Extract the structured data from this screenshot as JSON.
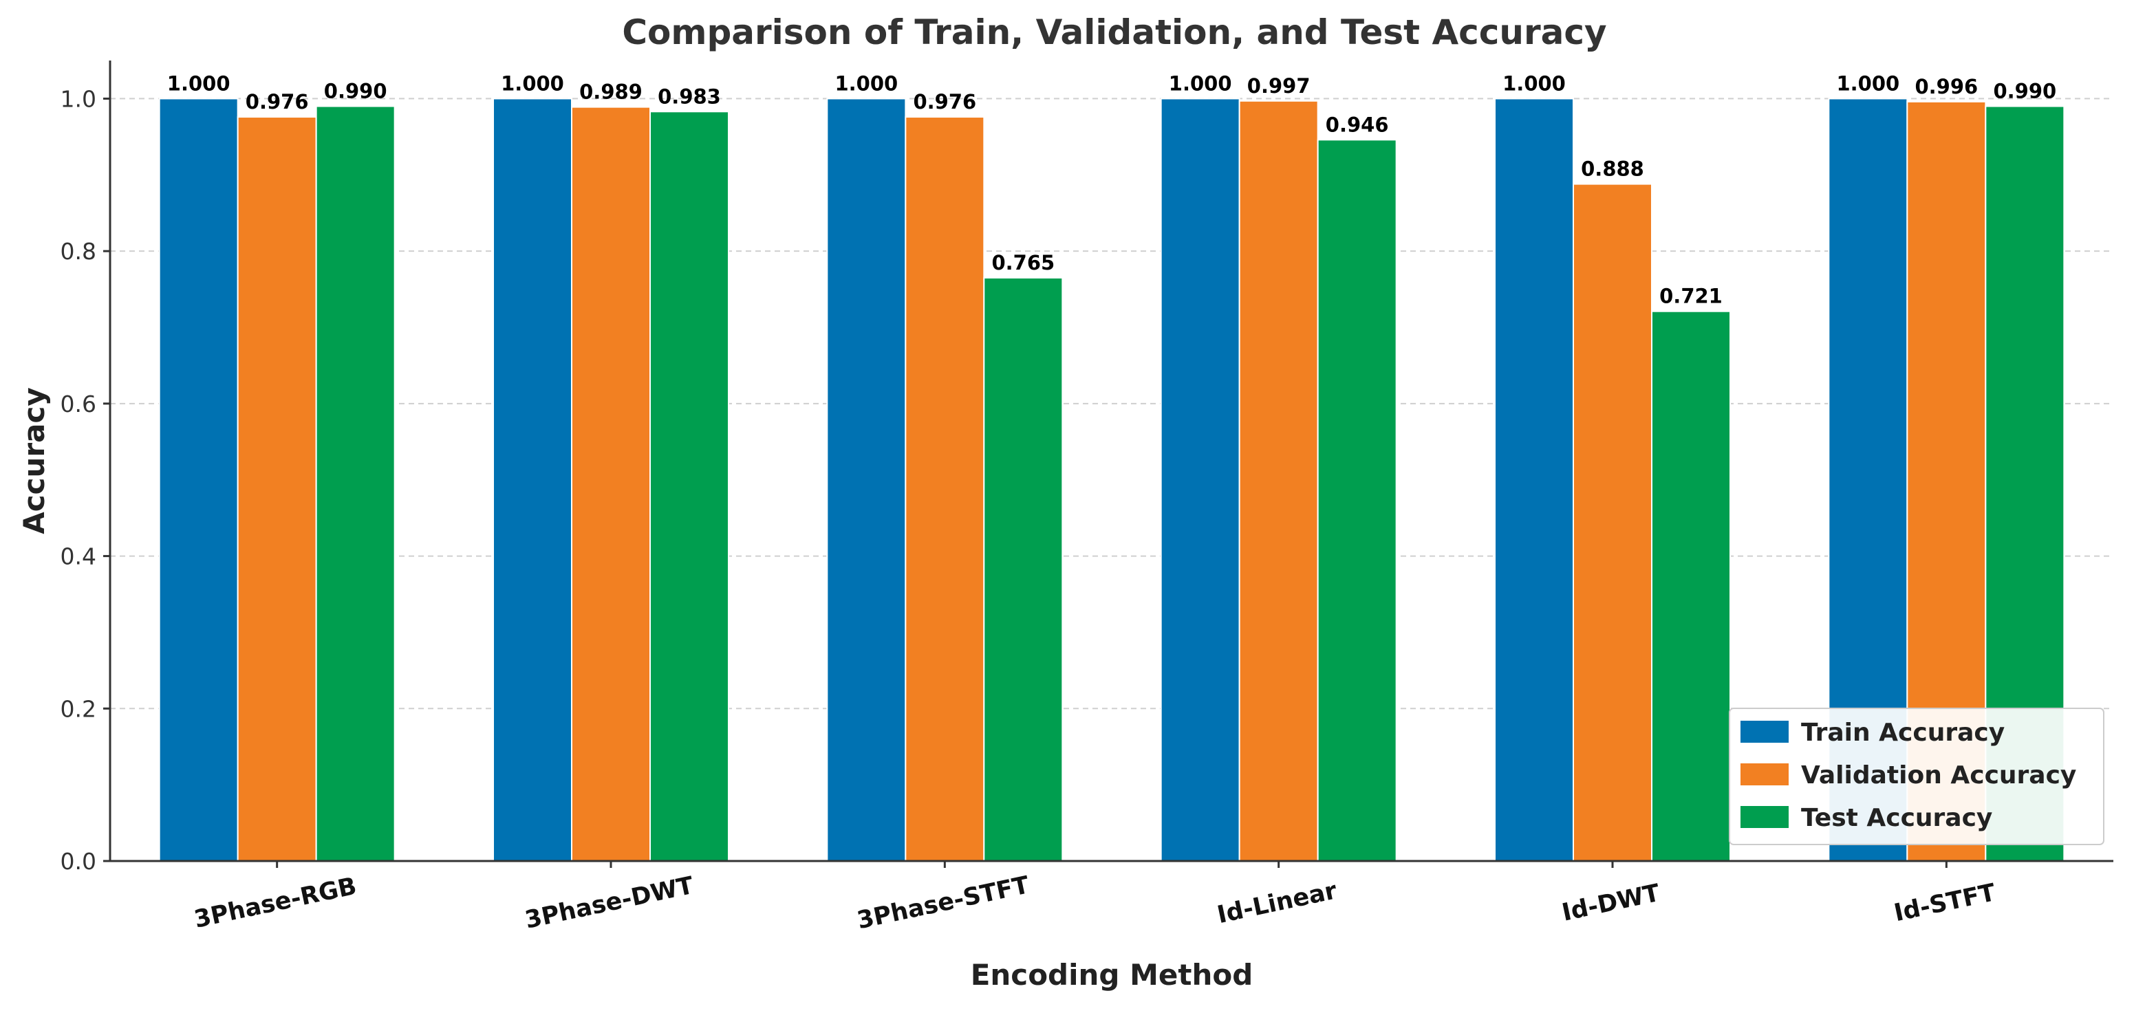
{
  "chart_data": {
    "type": "bar",
    "title": "Comparison of Train, Validation, and Test Accuracy",
    "xlabel": "Encoding Method",
    "ylabel": "Accuracy",
    "ylim": [
      0,
      1.05
    ],
    "yticks": [
      0.0,
      0.2,
      0.4,
      0.6,
      0.8,
      1.0
    ],
    "ytick_labels": [
      "0.0",
      "0.2",
      "0.4",
      "0.6",
      "0.8",
      "1.0"
    ],
    "grid": true,
    "legend_position": "bottom-right",
    "categories": [
      "3Phase-RGB",
      "3Phase-DWT",
      "3Phase-STFT",
      "Id-Linear",
      "Id-DWT",
      "Id-STFT"
    ],
    "series": [
      {
        "name": "Train Accuracy",
        "color": "#0072b2",
        "values": [
          1.0,
          1.0,
          1.0,
          1.0,
          1.0,
          1.0
        ],
        "labels": [
          "1.000",
          "1.000",
          "1.000",
          "1.000",
          "1.000",
          "1.000"
        ]
      },
      {
        "name": "Validation Accuracy",
        "color": "#f28022",
        "values": [
          0.976,
          0.989,
          0.976,
          0.997,
          0.888,
          0.996
        ],
        "labels": [
          "0.976",
          "0.989",
          "0.976",
          "0.997",
          "0.888",
          "0.996"
        ]
      },
      {
        "name": "Test Accuracy",
        "color": "#009e4f",
        "values": [
          0.99,
          0.983,
          0.765,
          0.946,
          0.721,
          0.99
        ],
        "labels": [
          "0.990",
          "0.983",
          "0.765",
          "0.946",
          "0.721",
          "0.990"
        ]
      }
    ]
  }
}
